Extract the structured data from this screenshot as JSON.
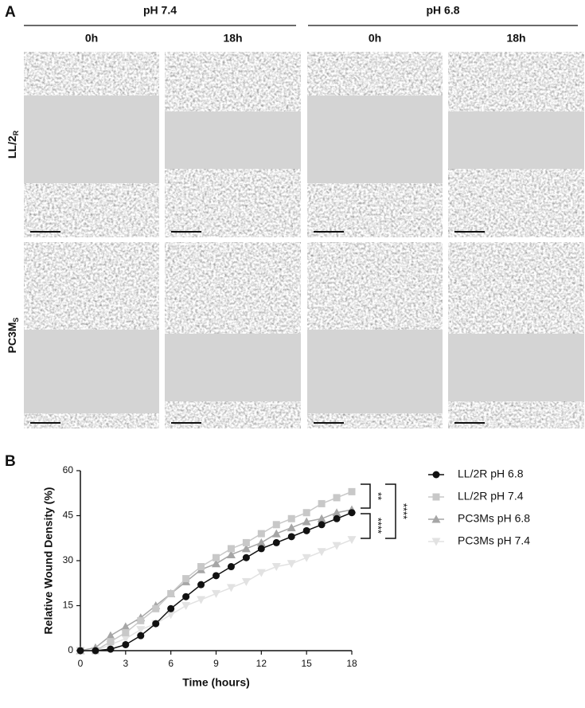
{
  "panel_a": {
    "label": "A",
    "groups": [
      {
        "title": "pH 7.4",
        "columns": [
          "0h",
          "18h"
        ]
      },
      {
        "title": "pH 6.8",
        "columns": [
          "0h",
          "18h"
        ]
      }
    ],
    "rows": [
      {
        "main": "LL/2",
        "sub": "R"
      },
      {
        "main": "PC3M",
        "sub": "S"
      }
    ]
  },
  "panel_b_label": "B",
  "chart_data": {
    "type": "line",
    "x_label": "Time (hours)",
    "y_label": "Relative Wound Density (%)",
    "x": [
      0,
      1,
      2,
      3,
      4,
      5,
      6,
      7,
      8,
      9,
      10,
      11,
      12,
      13,
      14,
      15,
      16,
      17,
      18
    ],
    "xlim": [
      0,
      18
    ],
    "xticks": [
      0,
      3,
      6,
      9,
      12,
      15,
      18
    ],
    "ylim": [
      0,
      60
    ],
    "yticks": [
      0,
      15,
      30,
      45,
      60
    ],
    "series": [
      {
        "name": "LL/2R pH 6.8",
        "color": "#111111",
        "marker": "circle",
        "values": [
          0,
          0,
          0.5,
          2,
          5,
          9,
          14,
          18,
          22,
          25,
          28,
          31,
          34,
          36,
          38,
          40,
          42,
          44,
          46
        ]
      },
      {
        "name": "LL/2R pH 7.4",
        "color": "#c8c8c8",
        "marker": "square",
        "values": [
          0,
          0,
          3,
          6,
          10,
          14,
          19,
          24,
          28,
          31,
          34,
          36,
          39,
          42,
          44,
          46,
          49,
          51,
          53
        ]
      },
      {
        "name": "PC3Ms pH 6.8",
        "color": "#a6a6a6",
        "marker": "triangle-up",
        "values": [
          0,
          1,
          5,
          8,
          11,
          15,
          19,
          23,
          27,
          29,
          32,
          34,
          36,
          39,
          41,
          43,
          44,
          46,
          47
        ]
      },
      {
        "name": "PC3Ms pH 7.4",
        "color": "#e2e2e2",
        "marker": "triangle-down",
        "values": [
          0,
          0,
          2,
          4,
          7,
          9,
          12,
          15,
          17,
          19,
          21,
          23,
          26,
          28,
          29,
          31,
          33,
          35,
          37
        ]
      }
    ],
    "annotations": [
      "**",
      "****",
      "****"
    ]
  }
}
